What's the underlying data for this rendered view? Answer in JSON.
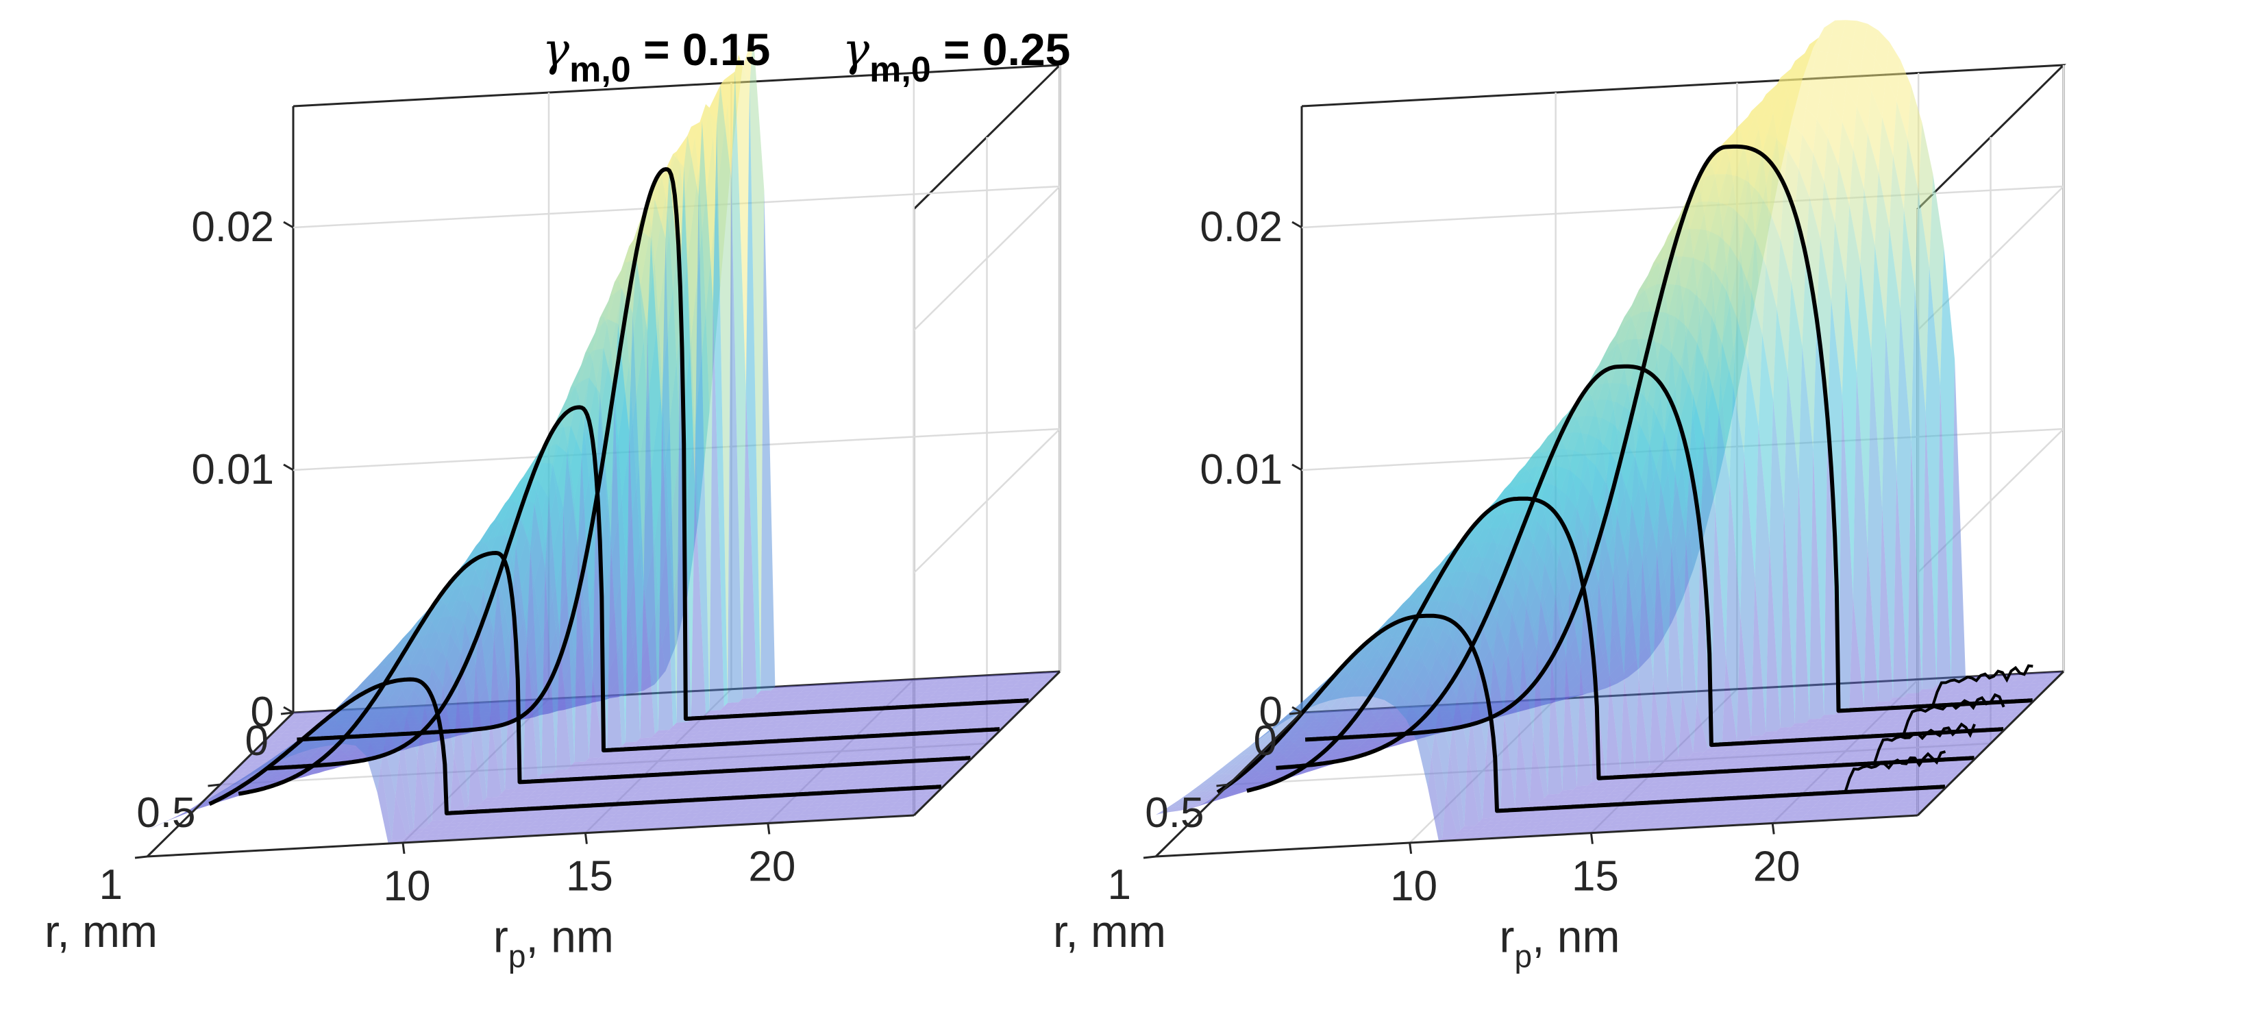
{
  "colors": {
    "axis": "#262626",
    "grid": "#dcdcdc",
    "curve": "#000000",
    "surface_low": "#6a5fd6",
    "surface_mid": "#35c2d8",
    "surface_high": "#f7ec80"
  },
  "chart_data": [
    {
      "type": "surface3d",
      "title": {
        "main": "γ",
        "sub": "m,0",
        "rest": " = 0.15"
      },
      "xlabel": {
        "main": "r",
        "sub": "p",
        "rest": ", nm"
      },
      "ylabel": "r, mm",
      "xlim": [
        3,
        24
      ],
      "ylim": [
        0,
        1
      ],
      "zlim": [
        0,
        0.025
      ],
      "xticks": [
        10,
        15,
        20
      ],
      "xtick_labels": [
        "10",
        "15",
        "20"
      ],
      "yticks": [
        0,
        0.5,
        1
      ],
      "ytick_labels": [
        "0",
        "0.5",
        "1"
      ],
      "zticks": [
        0,
        0.01,
        0.02
      ],
      "ztick_labels": [
        "0",
        "0.01",
        "0.02"
      ],
      "grid": true,
      "slices": [
        {
          "r": 0.2,
          "peak_rp": 14.0,
          "peak": 0.0227,
          "rise_width": 2.0,
          "cutoff": 14.55
        },
        {
          "r": 0.4,
          "peak_rp": 12.4,
          "peak": 0.0142,
          "rise_width": 2.7,
          "cutoff": 13.1
        },
        {
          "r": 0.6,
          "peak_rp": 10.9,
          "peak": 0.0095,
          "rise_width": 3.4,
          "cutoff": 11.6
        },
        {
          "r": 0.8,
          "peak_rp": 9.3,
          "peak": 0.0056,
          "rise_width": 4.0,
          "cutoff": 10.4
        }
      ],
      "has_tail": false
    },
    {
      "type": "surface3d",
      "title": {
        "main": "γ",
        "sub": "m,0",
        "rest": " = 0.25"
      },
      "xlabel": {
        "main": "r",
        "sub": "p",
        "rest": ", nm"
      },
      "ylabel": "r, mm",
      "xlim": [
        3,
        24
      ],
      "ylim": [
        0,
        1
      ],
      "zlim": [
        0,
        0.025
      ],
      "xticks": [
        10,
        15,
        20
      ],
      "xtick_labels": [
        "10",
        "15",
        "20"
      ],
      "yticks": [
        0,
        0.5,
        1
      ],
      "ytick_labels": [
        "0",
        "0.5",
        "1"
      ],
      "zticks": [
        0,
        0.01,
        0.02
      ],
      "ztick_labels": [
        "0",
        "0.01",
        "0.02"
      ],
      "grid": true,
      "slices": [
        {
          "r": 0.2,
          "peak_rp": 15.5,
          "peak": 0.0235,
          "rise_width": 3.3,
          "cutoff": 18.6
        },
        {
          "r": 0.4,
          "peak_rp": 13.3,
          "peak": 0.0158,
          "rise_width": 3.6,
          "cutoff": 15.9
        },
        {
          "r": 0.6,
          "peak_rp": 11.3,
          "peak": 0.0117,
          "rise_width": 3.8,
          "cutoff": 13.6
        },
        {
          "r": 0.8,
          "peak_rp": 9.5,
          "peak": 0.0082,
          "rise_width": 4.2,
          "cutoff": 11.6
        }
      ],
      "has_tail": true
    }
  ]
}
